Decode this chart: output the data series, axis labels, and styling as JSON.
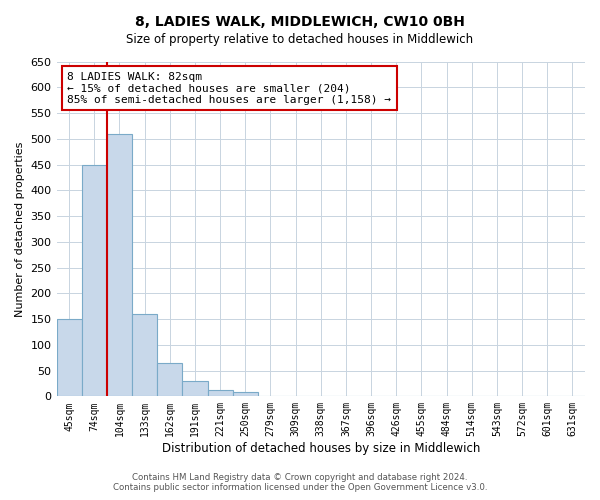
{
  "title": "8, LADIES WALK, MIDDLEWICH, CW10 0BH",
  "subtitle": "Size of property relative to detached houses in Middlewich",
  "xlabel": "Distribution of detached houses by size in Middlewich",
  "ylabel": "Number of detached properties",
  "bar_labels": [
    "45sqm",
    "74sqm",
    "104sqm",
    "133sqm",
    "162sqm",
    "191sqm",
    "221sqm",
    "250sqm",
    "279sqm",
    "309sqm",
    "338sqm",
    "367sqm",
    "396sqm",
    "426sqm",
    "455sqm",
    "484sqm",
    "514sqm",
    "543sqm",
    "572sqm",
    "601sqm",
    "631sqm"
  ],
  "bar_values": [
    150,
    450,
    510,
    160,
    65,
    30,
    13,
    8,
    0,
    0,
    0,
    0,
    0,
    0,
    0,
    0,
    0,
    0,
    0,
    0,
    0
  ],
  "bar_color": "#c8d8ea",
  "bar_edge_color": "#7aaac8",
  "highlight_color": "#cc0000",
  "annotation_title": "8 LADIES WALK: 82sqm",
  "annotation_line1": "← 15% of detached houses are smaller (204)",
  "annotation_line2": "85% of semi-detached houses are larger (1,158) →",
  "annotation_box_color": "#ffffff",
  "annotation_box_edge": "#cc0000",
  "ylim": [
    0,
    650
  ],
  "yticks": [
    0,
    50,
    100,
    150,
    200,
    250,
    300,
    350,
    400,
    450,
    500,
    550,
    600,
    650
  ],
  "footer_line1": "Contains HM Land Registry data © Crown copyright and database right 2024.",
  "footer_line2": "Contains public sector information licensed under the Open Government Licence v3.0.",
  "bg_color": "#ffffff",
  "grid_color": "#c8d4e0"
}
